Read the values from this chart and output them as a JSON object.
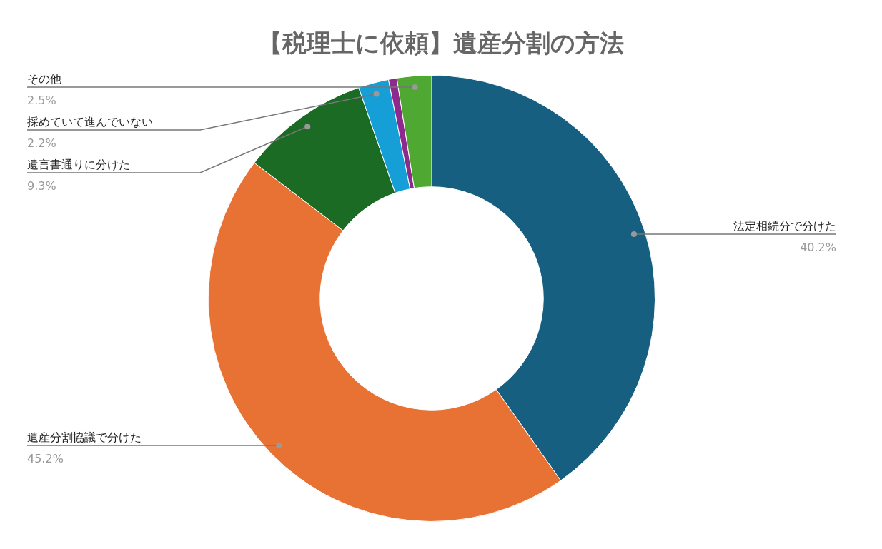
{
  "chart_data": {
    "type": "donut",
    "title": "【税理士に依頼】遺産分割の方法",
    "categories": [
      "法定相続分で分けた",
      "遺産分割協議で分けた",
      "遺言書通りに分けた",
      "採めていて進んでいない",
      null,
      "その他"
    ],
    "values": [
      40.2,
      45.2,
      9.3,
      2.2,
      0.6,
      2.5
    ],
    "colors": [
      "#175f80",
      "#e87234",
      "#1b6b25",
      "#169fd6",
      "#8e2a8e",
      "#4ea832"
    ],
    "value_labels": [
      "40.2%",
      "45.2%",
      "9.3%",
      "2.2%",
      null,
      "2.5%"
    ],
    "legend": false
  }
}
